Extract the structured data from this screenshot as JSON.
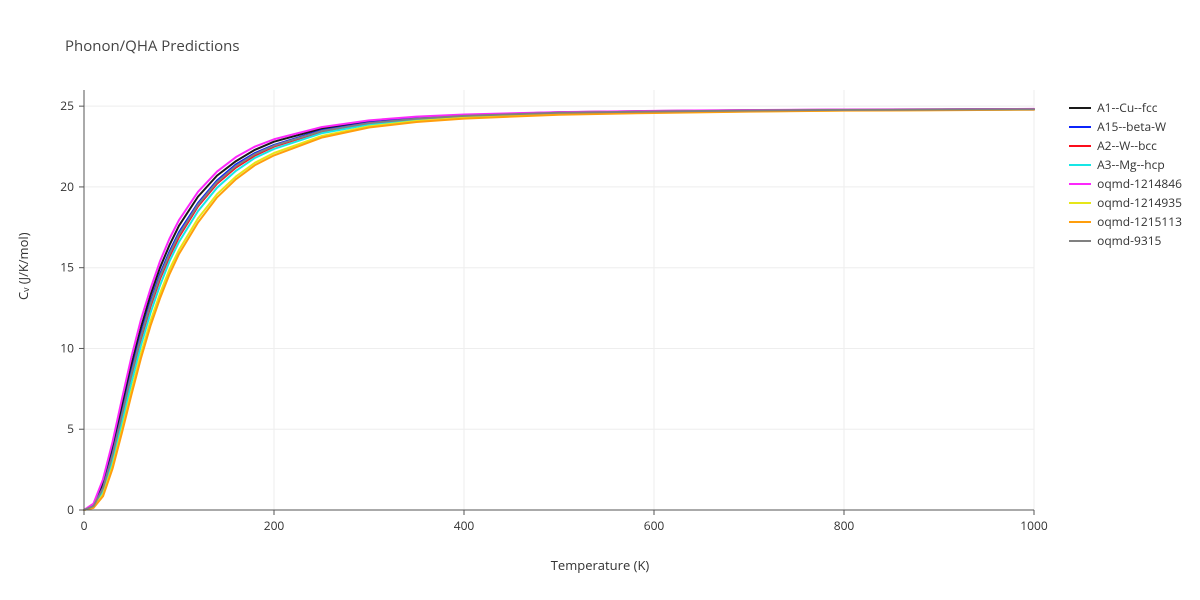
{
  "chart": {
    "type": "line",
    "title": "Phonon/QHA Predictions",
    "title_fontsize": 15,
    "title_color": "#444444",
    "background_color": "#ffffff",
    "plot_area_border": "#555555",
    "plot_area_border_width": 1,
    "grid_color": "#eeeeee",
    "grid_width": 1,
    "grid_on": true,
    "minor_ticks": false,
    "axis_tick_color": "#555555",
    "axis_tick_length": 5,
    "axis_label_fontsize": 13,
    "tick_label_fontsize": 12,
    "tick_label_color": "#333333",
    "font_family": "Segoe UI, Open Sans, Arial, sans-serif",
    "xlabel": "Temperature (K)",
    "ylabel": "Cᵥ (J/K/mol)",
    "xlim": [
      0,
      1000
    ],
    "ylim": [
      0,
      26
    ],
    "xticks": [
      0,
      200,
      400,
      600,
      800,
      1000
    ],
    "yticks": [
      0,
      5,
      10,
      15,
      20,
      25
    ],
    "line_width": 2,
    "legend_position": "right",
    "legend_fontsize": 12,
    "legend_swatch_width": 22,
    "aspect_ratio": 2.26,
    "series": [
      {
        "name": "A1--Cu--fcc",
        "color": "#1a1a1a",
        "x": [
          0,
          10,
          20,
          30,
          40,
          50,
          60,
          70,
          80,
          90,
          100,
          120,
          140,
          160,
          180,
          200,
          250,
          300,
          350,
          400,
          500,
          600,
          700,
          800,
          900,
          1000
        ],
        "y": [
          0,
          0.3,
          1.6,
          3.8,
          6.4,
          9.0,
          11.3,
          13.3,
          15.0,
          16.4,
          17.6,
          19.4,
          20.7,
          21.6,
          22.3,
          22.8,
          23.6,
          24.05,
          24.3,
          24.45,
          24.62,
          24.7,
          24.75,
          24.78,
          24.8,
          24.82
        ]
      },
      {
        "name": "A15--beta-W",
        "color": "#0b24fb",
        "x": [
          0,
          10,
          20,
          30,
          40,
          50,
          60,
          70,
          80,
          90,
          100,
          120,
          140,
          160,
          180,
          200,
          250,
          300,
          350,
          400,
          500,
          600,
          700,
          800,
          900,
          1000
        ],
        "y": [
          0,
          0.25,
          1.4,
          3.5,
          6.0,
          8.6,
          10.9,
          12.9,
          14.6,
          16.0,
          17.2,
          19.0,
          20.4,
          21.4,
          22.1,
          22.6,
          23.5,
          23.98,
          24.25,
          24.42,
          24.6,
          24.68,
          24.74,
          24.77,
          24.79,
          24.81
        ]
      },
      {
        "name": "A2--W--bcc",
        "color": "#fc0d1b",
        "x": [
          0,
          10,
          20,
          30,
          40,
          50,
          60,
          70,
          80,
          90,
          100,
          120,
          140,
          160,
          180,
          200,
          250,
          300,
          350,
          400,
          500,
          600,
          700,
          800,
          900,
          1000
        ],
        "y": [
          0,
          0.22,
          1.3,
          3.3,
          5.8,
          8.3,
          10.6,
          12.6,
          14.3,
          15.7,
          16.9,
          18.8,
          20.2,
          21.2,
          21.95,
          22.5,
          23.42,
          23.92,
          24.2,
          24.38,
          24.58,
          24.66,
          24.72,
          24.76,
          24.78,
          24.8
        ]
      },
      {
        "name": "A3--Mg--hcp",
        "color": "#17e6e6",
        "x": [
          0,
          10,
          20,
          30,
          40,
          50,
          60,
          70,
          80,
          90,
          100,
          120,
          140,
          160,
          180,
          200,
          250,
          300,
          350,
          400,
          500,
          600,
          700,
          800,
          900,
          1000
        ],
        "y": [
          0,
          0.18,
          1.1,
          3.0,
          5.4,
          7.9,
          10.2,
          12.2,
          13.9,
          15.4,
          16.6,
          18.5,
          19.95,
          21.0,
          21.8,
          22.35,
          23.32,
          23.86,
          24.16,
          24.34,
          24.55,
          24.64,
          24.71,
          24.75,
          24.78,
          24.8
        ]
      },
      {
        "name": "oqmd-1214846",
        "color": "#fd28fc",
        "x": [
          0,
          10,
          20,
          30,
          40,
          50,
          60,
          70,
          80,
          90,
          100,
          120,
          140,
          160,
          180,
          200,
          250,
          300,
          350,
          400,
          500,
          600,
          700,
          800,
          900,
          1000
        ],
        "y": [
          0,
          0.4,
          1.9,
          4.2,
          6.9,
          9.5,
          11.8,
          13.7,
          15.4,
          16.8,
          17.95,
          19.7,
          20.95,
          21.85,
          22.5,
          22.95,
          23.7,
          24.12,
          24.35,
          24.48,
          24.63,
          24.71,
          24.76,
          24.79,
          24.81,
          24.83
        ]
      },
      {
        "name": "oqmd-1214935",
        "color": "#e6e619",
        "x": [
          0,
          10,
          20,
          30,
          40,
          50,
          60,
          70,
          80,
          90,
          100,
          120,
          140,
          160,
          180,
          200,
          250,
          300,
          350,
          400,
          500,
          600,
          700,
          800,
          900,
          1000
        ],
        "y": [
          0,
          0.15,
          0.95,
          2.7,
          5.0,
          7.4,
          9.7,
          11.7,
          13.4,
          14.9,
          16.1,
          18.05,
          19.55,
          20.65,
          21.5,
          22.1,
          23.15,
          23.75,
          24.08,
          24.28,
          24.5,
          24.6,
          24.68,
          24.73,
          24.76,
          24.79
        ]
      },
      {
        "name": "oqmd-1215113",
        "color": "#ff9e0d",
        "x": [
          0,
          10,
          20,
          30,
          40,
          50,
          60,
          70,
          80,
          90,
          100,
          120,
          140,
          160,
          180,
          200,
          250,
          300,
          350,
          400,
          500,
          600,
          700,
          800,
          900,
          1000
        ],
        "y": [
          0,
          0.13,
          0.85,
          2.55,
          4.8,
          7.15,
          9.4,
          11.4,
          13.1,
          14.6,
          15.85,
          17.8,
          19.35,
          20.48,
          21.35,
          21.95,
          23.05,
          23.68,
          24.02,
          24.23,
          24.47,
          24.58,
          24.66,
          24.72,
          24.75,
          24.78
        ]
      },
      {
        "name": "oqmd-9315",
        "color": "#808080",
        "x": [
          0,
          10,
          20,
          30,
          40,
          50,
          60,
          70,
          80,
          90,
          100,
          120,
          140,
          160,
          180,
          200,
          250,
          300,
          350,
          400,
          500,
          600,
          700,
          800,
          900,
          1000
        ],
        "y": [
          0,
          0.24,
          1.35,
          3.4,
          5.9,
          8.45,
          10.75,
          12.75,
          14.45,
          15.85,
          17.05,
          18.9,
          20.3,
          21.3,
          22.03,
          22.55,
          23.46,
          23.95,
          24.22,
          24.4,
          24.59,
          24.67,
          24.73,
          24.77,
          24.79,
          24.81
        ]
      }
    ]
  }
}
